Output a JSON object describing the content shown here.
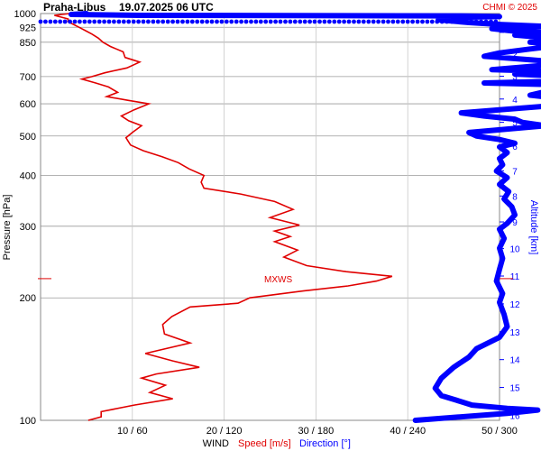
{
  "header": {
    "station": "Praha-Libus",
    "datetime": "19.07.2025 06 UTC",
    "credit": "CHMI © 2025"
  },
  "axes": {
    "left_title": "Pressure [hPa]",
    "right_title": "Altitude [km]",
    "bottom_wind": "WIND",
    "bottom_speed": "Speed [m/s]",
    "bottom_direction": "Direction [°]"
  },
  "annotation": {
    "label": "MXWS",
    "pressure": 223
  },
  "colors": {
    "speed": "#e00000",
    "direction": "#0000ff",
    "grid": "#9a9a9a",
    "annotation": "#e00000",
    "credit": "#e00000"
  },
  "chart_data": {
    "type": "line",
    "y_axis": {
      "quantity": "pressure",
      "unit": "hPa",
      "scale": "log",
      "range": [
        1000,
        100
      ],
      "ticks": [
        100,
        200,
        300,
        400,
        500,
        600,
        700,
        850,
        925,
        1000
      ]
    },
    "y2_axis": {
      "quantity": "altitude",
      "unit": "km",
      "ticks": [
        1,
        2,
        3,
        4,
        5,
        6,
        7,
        8,
        9,
        10,
        11,
        12,
        13,
        14,
        15,
        16
      ]
    },
    "x_axis": {
      "speed_range": [
        0,
        50
      ],
      "direction_range": [
        0,
        300
      ],
      "tick_labels": [
        "10 / 60",
        "20 / 120",
        "30 / 180",
        "40 / 240",
        "50 / 300"
      ]
    },
    "series": [
      {
        "name": "Speed [m/s]",
        "points": [
          [
            3.2,
            1000
          ],
          [
            1.5,
            990
          ],
          [
            3,
            970
          ],
          [
            3,
            955
          ],
          [
            3.6,
            940
          ],
          [
            4.2,
            925
          ],
          [
            4.8,
            910
          ],
          [
            5.6,
            890
          ],
          [
            6.3,
            870
          ],
          [
            6.8,
            850
          ],
          [
            7.6,
            830
          ],
          [
            9,
            805
          ],
          [
            9.2,
            780
          ],
          [
            10.8,
            760
          ],
          [
            9.4,
            735
          ],
          [
            7,
            715
          ],
          [
            5.6,
            700
          ],
          [
            4.5,
            690
          ],
          [
            6,
            675
          ],
          [
            7.4,
            660
          ],
          [
            8.4,
            640
          ],
          [
            7.2,
            625
          ],
          [
            9.5,
            612
          ],
          [
            11.8,
            600
          ],
          [
            10.2,
            580
          ],
          [
            8.8,
            560
          ],
          [
            9.6,
            545
          ],
          [
            11,
            530
          ],
          [
            10,
            510
          ],
          [
            9.3,
            495
          ],
          [
            9.8,
            475
          ],
          [
            11.2,
            460
          ],
          [
            13.2,
            445
          ],
          [
            15,
            430
          ],
          [
            16.2,
            415
          ],
          [
            17.8,
            400
          ],
          [
            17.5,
            385
          ],
          [
            17.8,
            372
          ],
          [
            21.8,
            360
          ],
          [
            25.5,
            345
          ],
          [
            27.5,
            330
          ],
          [
            25,
            315
          ],
          [
            28.2,
            302
          ],
          [
            25.5,
            292
          ],
          [
            27.2,
            283
          ],
          [
            25.5,
            275
          ],
          [
            28,
            262
          ],
          [
            26.5,
            252
          ],
          [
            29,
            240
          ],
          [
            33.3,
            232
          ],
          [
            38.3,
            226
          ],
          [
            36.6,
            220
          ],
          [
            33.5,
            214
          ],
          [
            28.6,
            208
          ],
          [
            22.8,
            200
          ],
          [
            21.5,
            194
          ],
          [
            16.3,
            190
          ],
          [
            14.3,
            180
          ],
          [
            13.3,
            172
          ],
          [
            13.5,
            163
          ],
          [
            16.3,
            155
          ],
          [
            11.4,
            146
          ],
          [
            14.4,
            140
          ],
          [
            17.3,
            135
          ],
          [
            12.6,
            130
          ],
          [
            11,
            127
          ],
          [
            13.6,
            122
          ],
          [
            11.9,
            117
          ],
          [
            14.4,
            113
          ],
          [
            10.2,
            109
          ],
          [
            6.6,
            105
          ],
          [
            6.6,
            102
          ],
          [
            5.2,
            100
          ]
        ]
      },
      {
        "name": "Direction [°]",
        "points": [
          [
            30,
            1000
          ],
          [
            20,
            995
          ],
          [
            65,
            990
          ],
          [
            275,
            987
          ],
          [
            300,
            983
          ],
          [
            270,
            978
          ],
          [
            260,
            965
          ],
          [
            280,
            950
          ],
          [
            300,
            940
          ],
          [
            330,
            930
          ],
          [
            295,
            918
          ],
          [
            310,
            905
          ],
          [
            345,
            895
          ],
          [
            310,
            885
          ],
          [
            330,
            872
          ],
          [
            355,
            860
          ],
          [
            320,
            850
          ],
          [
            340,
            835
          ],
          [
            320,
            818
          ],
          [
            300,
            800
          ],
          [
            290,
            785
          ],
          [
            320,
            770
          ],
          [
            345,
            755
          ],
          [
            318,
            740
          ],
          [
            295,
            728
          ],
          [
            350,
            718
          ],
          [
            310,
            710
          ],
          [
            345,
            700
          ],
          [
            380,
            690
          ],
          [
            335,
            682
          ],
          [
            290,
            675
          ],
          [
            340,
            668
          ],
          [
            350,
            655
          ],
          [
            330,
            643
          ],
          [
            320,
            630
          ],
          [
            340,
            618
          ],
          [
            345,
            605
          ],
          [
            330,
            592
          ],
          [
            300,
            580
          ],
          [
            275,
            570
          ],
          [
            290,
            560
          ],
          [
            310,
            550
          ],
          [
            315,
            540
          ],
          [
            330,
            530
          ],
          [
            305,
            520
          ],
          [
            280,
            510
          ],
          [
            285,
            500
          ],
          [
            300,
            490
          ],
          [
            310,
            480
          ],
          [
            300,
            470
          ],
          [
            305,
            455
          ],
          [
            300,
            440
          ],
          [
            302,
            425
          ],
          [
            298,
            410
          ],
          [
            305,
            395
          ],
          [
            300,
            380
          ],
          [
            306,
            365
          ],
          [
            303,
            350
          ],
          [
            308,
            335
          ],
          [
            310,
            320
          ],
          [
            305,
            305
          ],
          [
            300,
            295
          ],
          [
            303,
            280
          ],
          [
            300,
            265
          ],
          [
            302,
            250
          ],
          [
            300,
            235
          ],
          [
            298,
            220
          ],
          [
            302,
            205
          ],
          [
            300,
            195
          ],
          [
            303,
            182
          ],
          [
            305,
            170
          ],
          [
            300,
            160
          ],
          [
            285,
            150
          ],
          [
            280,
            143
          ],
          [
            270,
            135
          ],
          [
            262,
            127
          ],
          [
            258,
            120
          ],
          [
            262,
            115
          ],
          [
            272,
            112
          ],
          [
            282,
            109
          ],
          [
            305,
            107
          ],
          [
            325,
            106
          ],
          [
            305,
            104
          ],
          [
            275,
            102
          ],
          [
            245,
            100
          ]
        ]
      }
    ]
  }
}
